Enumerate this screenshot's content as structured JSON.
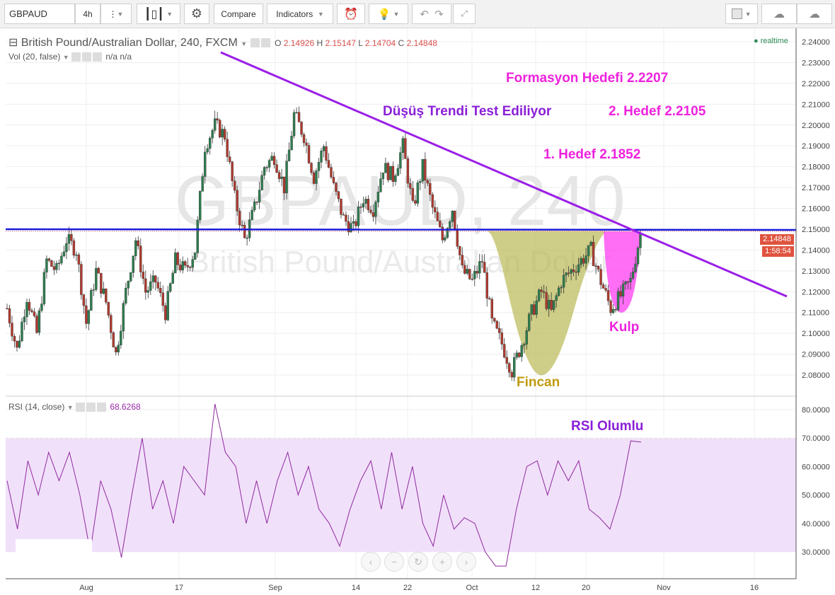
{
  "toolbar": {
    "symbol": "GBPAUD",
    "interval": "4h",
    "compare": "Compare",
    "indicators": "Indicators"
  },
  "legend": {
    "title": "British Pound/Australian Dollar, 240, FXCM",
    "o_label": "O",
    "o": "2.14926",
    "h_label": "H",
    "h": "2.15147",
    "l_label": "L",
    "l": "2.14704",
    "c_label": "C",
    "c": "2.14848",
    "vol": "Vol (20, false)",
    "vol_vals": "n/a  n/a",
    "realtime": "realtime"
  },
  "watermark": {
    "line1": "GBPAUD, 240",
    "line2": "British Pound/Australian Dollar"
  },
  "price_badge": {
    "price": "2.14848",
    "countdown": "1:58:54",
    "color": "#e0533f"
  },
  "rsi_legend": {
    "title": "RSI (14, close)",
    "value": "68.6268"
  },
  "annotations": {
    "target_pattern": "Formasyon Hedefi 2.2207",
    "trend_test": "Düşüş Trendi Test Ediliyor",
    "target2": "2. Hedef 2.2105",
    "target1": "1. Hedef 2.1852",
    "handle": "Kulp",
    "cup": "Fincan",
    "rsi": "RSI Olumlu"
  },
  "colors": {
    "up": "#2e7d4f",
    "down": "#b03a2e",
    "trend": "#9b1fe8",
    "resistance": "#1a1adb",
    "cup": "#b5b54a",
    "handle": "#ff3ef0",
    "rsi_line": "#8e2a9e",
    "rsi_band": "#f1e0fa",
    "magenta_text": "#ee22dd",
    "purple_text": "#8a1fd8",
    "cup_text": "#c09a10"
  },
  "chart_data": {
    "type": "candlestick",
    "price_axis": {
      "ylim": [
        2.075,
        2.245
      ],
      "ticks": [
        "2.24000",
        "2.23000",
        "2.22000",
        "2.21000",
        "2.20000",
        "2.19000",
        "2.18000",
        "2.17000",
        "2.16000",
        "2.15000",
        "2.14000",
        "2.13000",
        "2.12000",
        "2.11000",
        "2.10000",
        "2.09000",
        "2.08000"
      ]
    },
    "x_ticks": [
      "Aug",
      "17",
      "Sep",
      "14",
      "22",
      "Oct",
      "12",
      "20",
      "Nov",
      "16"
    ],
    "closes": [
      2.112,
      2.092,
      2.118,
      2.1,
      2.135,
      2.13,
      2.145,
      2.14,
      2.105,
      2.13,
      2.115,
      2.09,
      2.12,
      2.145,
      2.12,
      2.125,
      2.11,
      2.135,
      2.13,
      2.14,
      2.19,
      2.2,
      2.195,
      2.165,
      2.145,
      2.16,
      2.18,
      2.185,
      2.17,
      2.205,
      2.195,
      2.175,
      2.19,
      2.17,
      2.155,
      2.15,
      2.165,
      2.16,
      2.18,
      2.175,
      2.19,
      2.16,
      2.18,
      2.16,
      2.145,
      2.16,
      2.13,
      2.125,
      2.135,
      2.105,
      2.095,
      2.082,
      2.095,
      2.11,
      2.12,
      2.11,
      2.125,
      2.13,
      2.135,
      2.14,
      2.125,
      2.112,
      2.118,
      2.125,
      2.148
    ],
    "rsi": {
      "ylim": [
        20,
        85
      ],
      "ticks": [
        "80.0000",
        "70.0000",
        "60.0000",
        "50.0000",
        "40.0000",
        "30.0000"
      ],
      "band": [
        30,
        70
      ],
      "values": [
        55,
        38,
        62,
        50,
        65,
        55,
        65,
        50,
        30,
        55,
        45,
        28,
        50,
        70,
        45,
        55,
        40,
        60,
        55,
        50,
        82,
        65,
        60,
        40,
        55,
        40,
        55,
        65,
        50,
        60,
        45,
        40,
        32,
        45,
        55,
        62,
        45,
        65,
        45,
        60,
        40,
        32,
        50,
        38,
        42,
        40,
        30,
        25,
        25,
        45,
        60,
        62,
        50,
        62,
        55,
        62,
        45,
        42,
        38,
        50,
        69,
        68.6
      ]
    }
  }
}
